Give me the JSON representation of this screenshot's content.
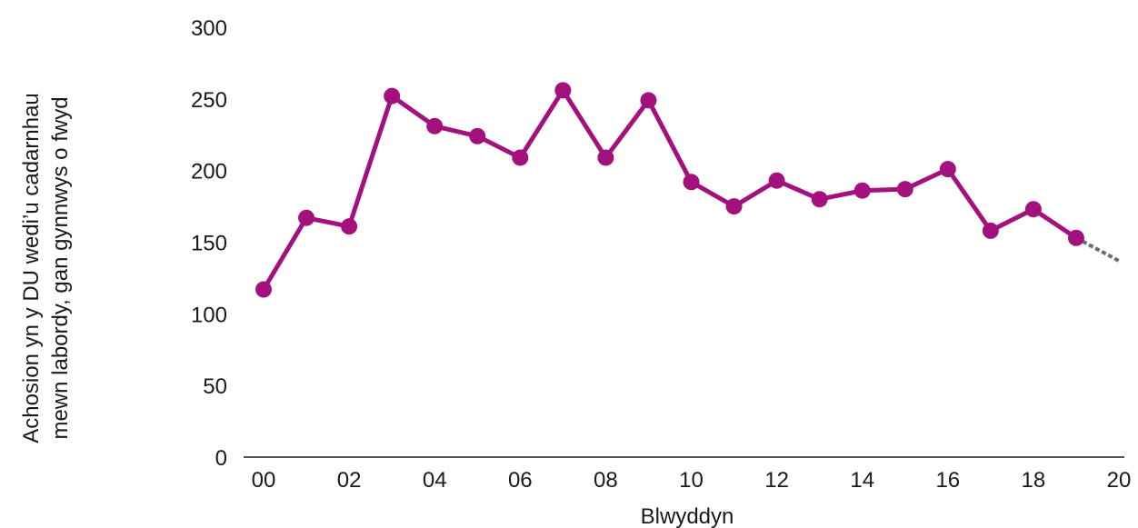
{
  "chart_data": {
    "type": "line",
    "xlabel": "Blwyddyn",
    "ylabel_lines": [
      "Achosion yn y DU wedi’u cadarnhau",
      "mewn labordy, gan gynnwys o fwyd"
    ],
    "x_tick_labels": [
      "00",
      "02",
      "04",
      "06",
      "08",
      "10",
      "12",
      "14",
      "16",
      "18",
      "20"
    ],
    "y_tick_labels": [
      "0",
      "50",
      "100",
      "150",
      "200",
      "250",
      "300"
    ],
    "xlim": [
      2000,
      2020
    ],
    "ylim": [
      0,
      300
    ],
    "series": [
      {
        "color": "#a3117f",
        "x": [
          2000,
          2001,
          2002,
          2003,
          2004,
          2005,
          2006,
          2007,
          2008,
          2009,
          2010,
          2011,
          2012,
          2013,
          2014,
          2015,
          2016,
          2017,
          2018,
          2019
        ],
        "values": [
          117,
          167,
          161,
          252,
          231,
          224,
          209,
          256,
          209,
          249,
          192,
          175,
          193,
          180,
          186,
          187,
          201,
          158,
          173,
          153
        ]
      }
    ],
    "trend": {
      "style": "dotted",
      "color": "#6b6b6b",
      "x": [
        2019,
        2020
      ],
      "values": [
        153,
        137
      ]
    },
    "grid": false
  }
}
